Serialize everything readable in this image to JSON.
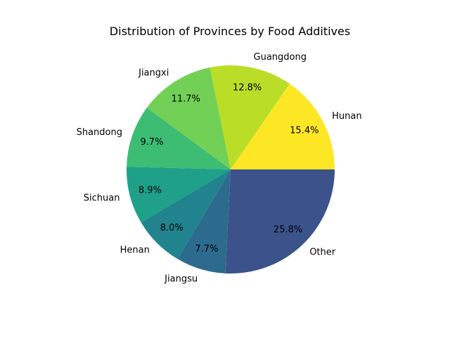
{
  "chart_data": {
    "type": "pie",
    "title": "Distribution of Provinces by Food Additives",
    "slices": [
      {
        "label": "Hunan",
        "value": 15.4,
        "pct_label": "15.4%",
        "color": "#fde725"
      },
      {
        "label": "Guangdong",
        "value": 12.8,
        "pct_label": "12.8%",
        "color": "#bade28"
      },
      {
        "label": "Jiangxi",
        "value": 11.7,
        "pct_label": "11.7%",
        "color": "#73d056"
      },
      {
        "label": "Shandong",
        "value": 9.7,
        "pct_label": "9.7%",
        "color": "#3dbc74"
      },
      {
        "label": "Sichuan",
        "value": 8.9,
        "pct_label": "8.9%",
        "color": "#1fa088"
      },
      {
        "label": "Henan",
        "value": 8.0,
        "pct_label": "8.0%",
        "color": "#21838e"
      },
      {
        "label": "Jiangsu",
        "value": 7.7,
        "pct_label": "7.7%",
        "color": "#2c6b8e"
      },
      {
        "label": "Other",
        "value": 25.8,
        "pct_label": "25.8%",
        "color": "#3b528b"
      }
    ],
    "start_angle": 0,
    "direction": "counterclockwise"
  }
}
